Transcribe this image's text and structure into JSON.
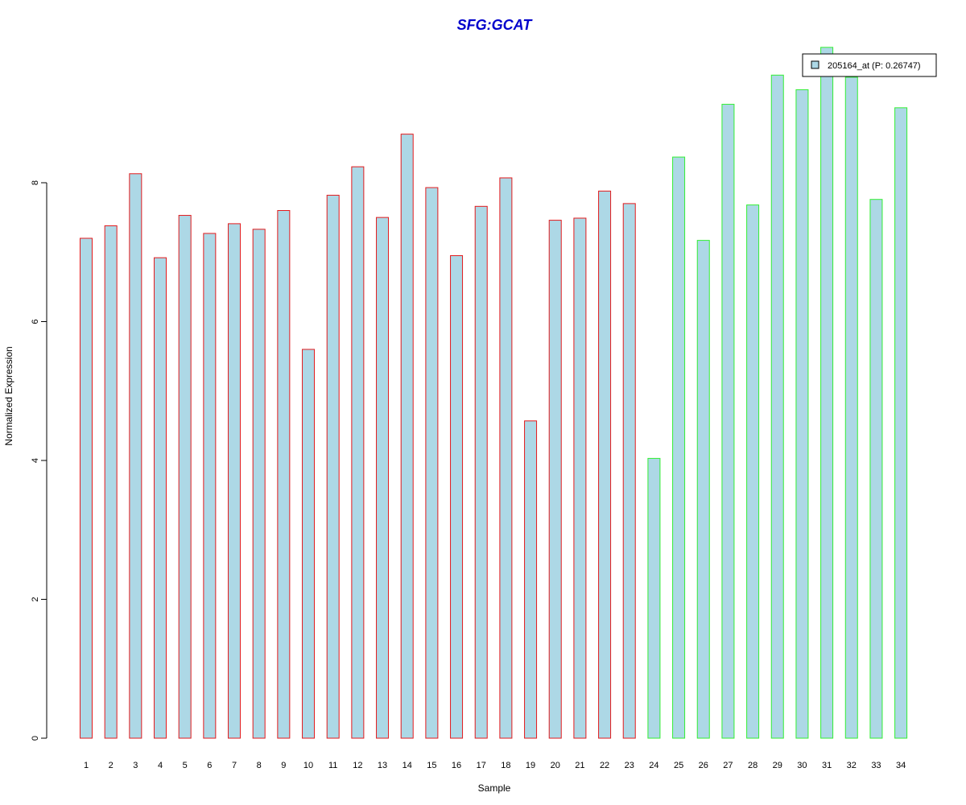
{
  "chart_data": {
    "type": "bar",
    "title": "SFG:GCAT",
    "xlabel": "Sample",
    "ylabel": "Normalized Expression",
    "ylim": [
      0,
      10
    ],
    "yticks": [
      0,
      2,
      4,
      6,
      8
    ],
    "grid": false,
    "legend_position": "top-right",
    "categories": [
      "1",
      "2",
      "3",
      "4",
      "5",
      "6",
      "7",
      "8",
      "9",
      "10",
      "11",
      "12",
      "13",
      "14",
      "15",
      "16",
      "17",
      "18",
      "19",
      "20",
      "21",
      "22",
      "23",
      "24",
      "25",
      "26",
      "27",
      "28",
      "29",
      "30",
      "31",
      "32",
      "33",
      "34"
    ],
    "series": [
      {
        "name": "205164_at (P: 0.26747)",
        "values": [
          7.2,
          7.38,
          8.13,
          6.92,
          7.53,
          7.27,
          7.41,
          7.33,
          7.6,
          5.6,
          7.82,
          8.23,
          7.5,
          8.7,
          7.93,
          6.95,
          7.66,
          8.07,
          4.57,
          7.46,
          7.49,
          7.88,
          7.7,
          4.03,
          8.37,
          7.17,
          9.13,
          7.68,
          9.55,
          9.34,
          9.95,
          9.52,
          7.76,
          9.08
        ]
      }
    ],
    "groups": [
      {
        "samples": "1-23",
        "border_color": "#e31a1c"
      },
      {
        "samples": "24-34",
        "border_color": "#33ee33"
      }
    ],
    "fill_color": "#add8e6",
    "group_border_colors": [
      "#e31a1c",
      "#e31a1c",
      "#e31a1c",
      "#e31a1c",
      "#e31a1c",
      "#e31a1c",
      "#e31a1c",
      "#e31a1c",
      "#e31a1c",
      "#e31a1c",
      "#e31a1c",
      "#e31a1c",
      "#e31a1c",
      "#e31a1c",
      "#e31a1c",
      "#e31a1c",
      "#e31a1c",
      "#e31a1c",
      "#e31a1c",
      "#e31a1c",
      "#e31a1c",
      "#e31a1c",
      "#e31a1c",
      "#33ee33",
      "#33ee33",
      "#33ee33",
      "#33ee33",
      "#33ee33",
      "#33ee33",
      "#33ee33",
      "#33ee33",
      "#33ee33",
      "#33ee33",
      "#33ee33"
    ],
    "title_color": "#0000cc"
  }
}
